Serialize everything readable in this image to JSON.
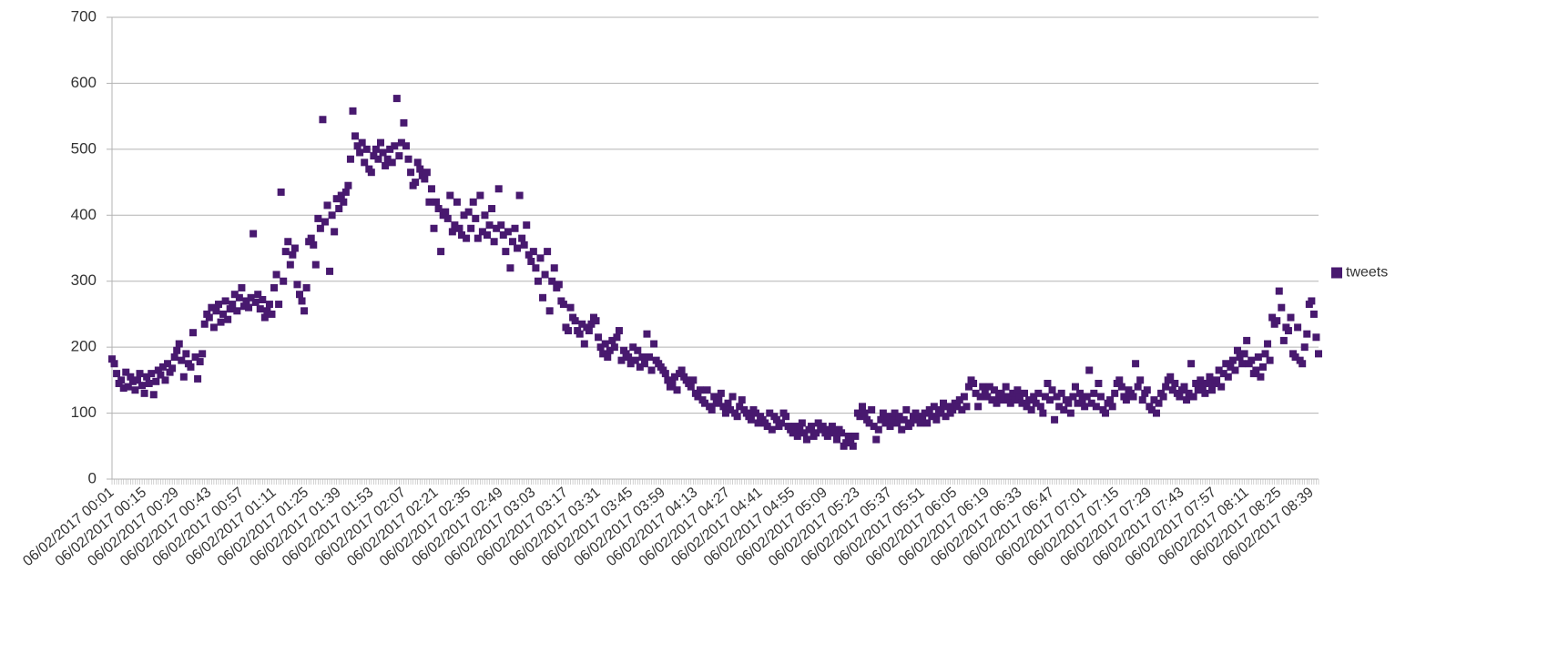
{
  "chart_data": {
    "type": "scatter",
    "categories": [
      "06/02/2017 00:01",
      null,
      null,
      null,
      null,
      null,
      null,
      null,
      null,
      null,
      null,
      null,
      null,
      null,
      "06/02/2017 00:15",
      null,
      null,
      null,
      null,
      null,
      null,
      null,
      null,
      null,
      null,
      null,
      null,
      null,
      "06/02/2017 00:29",
      null,
      null,
      null,
      null,
      null,
      null,
      null,
      null,
      null,
      null,
      null,
      null,
      null,
      "06/02/2017 00:43",
      null,
      null,
      null,
      null,
      null,
      null,
      null,
      null,
      null,
      null,
      null,
      null,
      null,
      "06/02/2017 00:57",
      null,
      null,
      null,
      null,
      null,
      null,
      null,
      null,
      null,
      null,
      null,
      null,
      null,
      "06/02/2017 01:11",
      null,
      null,
      null,
      null,
      null,
      null,
      null,
      null,
      null,
      null,
      null,
      null,
      null,
      "06/02/2017 01:25",
      null,
      null,
      null,
      null,
      null,
      null,
      null,
      null,
      null,
      null,
      null,
      null,
      null,
      "06/02/2017 01:39",
      null,
      null,
      null,
      null,
      null,
      null,
      null,
      null,
      null,
      null,
      null,
      null,
      null,
      "06/02/2017 01:53",
      null,
      null,
      null,
      null,
      null,
      null,
      null,
      null,
      null,
      null,
      null,
      null,
      null,
      "06/02/2017 02:07",
      null,
      null,
      null,
      null,
      null,
      null,
      null,
      null,
      null,
      null,
      null,
      null,
      null,
      "06/02/2017 02:21",
      null,
      null,
      null,
      null,
      null,
      null,
      null,
      null,
      null,
      null,
      null,
      null,
      null,
      "06/02/2017 02:35",
      null,
      null,
      null,
      null,
      null,
      null,
      null,
      null,
      null,
      null,
      null,
      null,
      null,
      "06/02/2017 02:49",
      null,
      null,
      null,
      null,
      null,
      null,
      null,
      null,
      null,
      null,
      null,
      null,
      null,
      "06/02/2017 03:03",
      null,
      null,
      null,
      null,
      null,
      null,
      null,
      null,
      null,
      null,
      null,
      null,
      null,
      "06/02/2017 03:17",
      null,
      null,
      null,
      null,
      null,
      null,
      null,
      null,
      null,
      null,
      null,
      null,
      null,
      "06/02/2017 03:31",
      null,
      null,
      null,
      null,
      null,
      null,
      null,
      null,
      null,
      null,
      null,
      null,
      null,
      "06/02/2017 03:45",
      null,
      null,
      null,
      null,
      null,
      null,
      null,
      null,
      null,
      null,
      null,
      null,
      null,
      "06/02/2017 03:59",
      null,
      null,
      null,
      null,
      null,
      null,
      null,
      null,
      null,
      null,
      null,
      null,
      null,
      "06/02/2017 04:13",
      null,
      null,
      null,
      null,
      null,
      null,
      null,
      null,
      null,
      null,
      null,
      null,
      null,
      "06/02/2017 04:27",
      null,
      null,
      null,
      null,
      null,
      null,
      null,
      null,
      null,
      null,
      null,
      null,
      null,
      "06/02/2017 04:41",
      null,
      null,
      null,
      null,
      null,
      null,
      null,
      null,
      null,
      null,
      null,
      null,
      null,
      "06/02/2017 04:55",
      null,
      null,
      null,
      null,
      null,
      null,
      null,
      null,
      null,
      null,
      null,
      null,
      null,
      "06/02/2017 05:09",
      null,
      null,
      null,
      null,
      null,
      null,
      null,
      null,
      null,
      null,
      null,
      null,
      null,
      "06/02/2017 05:23",
      null,
      null,
      null,
      null,
      null,
      null,
      null,
      null,
      null,
      null,
      null,
      null,
      null,
      "06/02/2017 05:37",
      null,
      null,
      null,
      null,
      null,
      null,
      null,
      null,
      null,
      null,
      null,
      null,
      null,
      "06/02/2017 05:51",
      null,
      null,
      null,
      null,
      null,
      null,
      null,
      null,
      null,
      null,
      null,
      null,
      null,
      "06/02/2017 06:05",
      null,
      null,
      null,
      null,
      null,
      null,
      null,
      null,
      null,
      null,
      null,
      null,
      null,
      "06/02/2017 06:19",
      null,
      null,
      null,
      null,
      null,
      null,
      null,
      null,
      null,
      null,
      null,
      null,
      null,
      "06/02/2017 06:33",
      null,
      null,
      null,
      null,
      null,
      null,
      null,
      null,
      null,
      null,
      null,
      null,
      null,
      "06/02/2017 06:47",
      null,
      null,
      null,
      null,
      null,
      null,
      null,
      null,
      null,
      null,
      null,
      null,
      null,
      "06/02/2017 07:01",
      null,
      null,
      null,
      null,
      null,
      null,
      null,
      null,
      null,
      null,
      null,
      null,
      null,
      "06/02/2017 07:15",
      null,
      null,
      null,
      null,
      null,
      null,
      null,
      null,
      null,
      null,
      null,
      null,
      null,
      "06/02/2017 07:29",
      null,
      null,
      null,
      null,
      null,
      null,
      null,
      null,
      null,
      null,
      null,
      null,
      null,
      "06/02/2017 07:43",
      null,
      null,
      null,
      null,
      null,
      null,
      null,
      null,
      null,
      null,
      null,
      null,
      null,
      "06/02/2017 07:57",
      null,
      null,
      null,
      null,
      null,
      null,
      null,
      null,
      null,
      null,
      null,
      null,
      null,
      "06/02/2017 08:11",
      null,
      null,
      null,
      null,
      null,
      null,
      null,
      null,
      null,
      null,
      null,
      null,
      null,
      "06/02/2017 08:25",
      null,
      null,
      null,
      null,
      null,
      null,
      null,
      null,
      null,
      null,
      null,
      null,
      null,
      "06/02/2017 08:39",
      null,
      null,
      null
    ],
    "series": [
      {
        "name": "tweets",
        "color": "#48196f",
        "values": [
          182,
          175,
          160,
          145,
          150,
          138,
          162,
          140,
          155,
          148,
          135,
          150,
          160,
          142,
          130,
          155,
          145,
          160,
          128,
          148,
          165,
          158,
          170,
          150,
          175,
          162,
          168,
          185,
          195,
          205,
          180,
          155,
          190,
          175,
          170,
          222,
          185,
          152,
          178,
          190,
          235,
          250,
          245,
          260,
          230,
          255,
          265,
          238,
          250,
          270,
          242,
          258,
          265,
          280,
          255,
          275,
          290,
          262,
          270,
          260,
          275,
          372,
          268,
          280,
          258,
          272,
          245,
          255,
          265,
          250,
          290,
          310,
          265,
          435,
          300,
          345,
          360,
          325,
          340,
          350,
          295,
          280,
          270,
          255,
          290,
          360,
          365,
          355,
          325,
          395,
          380,
          545,
          390,
          415,
          315,
          400,
          375,
          425,
          410,
          430,
          420,
          435,
          445,
          485,
          558,
          520,
          505,
          495,
          510,
          480,
          500,
          470,
          465,
          490,
          500,
          485,
          510,
          495,
          475,
          485,
          500,
          480,
          505,
          577,
          490,
          510,
          540,
          505,
          485,
          465,
          445,
          450,
          480,
          470,
          460,
          455,
          465,
          420,
          440,
          380,
          420,
          410,
          345,
          400,
          405,
          395,
          430,
          375,
          385,
          420,
          380,
          370,
          400,
          365,
          405,
          380,
          420,
          395,
          365,
          430,
          375,
          400,
          370,
          385,
          410,
          360,
          380,
          440,
          385,
          370,
          345,
          375,
          320,
          360,
          380,
          350,
          430,
          365,
          355,
          385,
          340,
          330,
          345,
          320,
          300,
          335,
          275,
          310,
          345,
          255,
          300,
          320,
          290,
          295,
          270,
          265,
          230,
          225,
          260,
          245,
          240,
          225,
          220,
          235,
          205,
          230,
          225,
          235,
          245,
          240,
          215,
          200,
          190,
          205,
          185,
          195,
          210,
          200,
          215,
          225,
          180,
          195,
          190,
          185,
          175,
          200,
          180,
          195,
          170,
          185,
          175,
          220,
          185,
          165,
          205,
          180,
          175,
          170,
          165,
          160,
          150,
          140,
          145,
          155,
          135,
          160,
          165,
          155,
          150,
          145,
          140,
          150,
          130,
          125,
          135,
          120,
          115,
          135,
          110,
          105,
          125,
          115,
          120,
          130,
          110,
          100,
          115,
          105,
          125,
          100,
          95,
          110,
          120,
          105,
          100,
          95,
          90,
          105,
          100,
          85,
          95,
          90,
          85,
          80,
          100,
          75,
          95,
          90,
          80,
          85,
          100,
          95,
          80,
          75,
          70,
          80,
          65,
          75,
          85,
          70,
          60,
          75,
          80,
          65,
          70,
          85,
          75,
          80,
          70,
          65,
          75,
          80,
          70,
          60,
          75,
          70,
          50,
          55,
          65,
          60,
          50,
          65,
          100,
          95,
          110,
          100,
          90,
          85,
          105,
          80,
          60,
          75,
          90,
          100,
          85,
          95,
          80,
          90,
          100,
          85,
          95,
          75,
          90,
          105,
          80,
          85,
          95,
          100,
          90,
          85,
          95,
          100,
          85,
          105,
          95,
          110,
          90,
          100,
          105,
          115,
          95,
          110,
          100,
          105,
          115,
          110,
          120,
          105,
          125,
          110,
          140,
          150,
          145,
          130,
          110,
          125,
          140,
          135,
          125,
          140,
          120,
          135,
          115,
          125,
          130,
          120,
          140,
          125,
          115,
          130,
          120,
          135,
          125,
          115,
          130,
          110,
          120,
          105,
          125,
          115,
          130,
          110,
          100,
          125,
          145,
          120,
          135,
          90,
          125,
          110,
          130,
          105,
          120,
          115,
          100,
          125,
          140,
          115,
          130,
          120,
          110,
          125,
          165,
          115,
          130,
          110,
          145,
          125,
          105,
          100,
          115,
          120,
          110,
          130,
          145,
          150,
          140,
          125,
          120,
          135,
          130,
          125,
          175,
          140,
          150,
          120,
          130,
          135,
          110,
          105,
          120,
          100,
          115,
          130,
          125,
          140,
          150,
          155,
          135,
          145,
          130,
          125,
          135,
          140,
          120,
          130,
          175,
          125,
          145,
          135,
          150,
          140,
          130,
          145,
          155,
          135,
          145,
          150,
          165,
          140,
          160,
          175,
          155,
          170,
          180,
          165,
          195,
          185,
          175,
          190,
          210,
          175,
          180,
          160,
          165,
          185,
          155,
          170,
          190,
          205,
          180,
          245,
          235,
          240,
          285,
          260,
          210,
          230,
          225,
          245,
          190,
          185,
          230,
          180,
          175,
          200,
          220,
          265,
          270,
          250,
          215,
          190
        ]
      }
    ],
    "ylim": [
      0,
      700
    ],
    "yticks": [
      0,
      100,
      200,
      300,
      400,
      500,
      600,
      700
    ],
    "grid": true,
    "legend": "right"
  }
}
